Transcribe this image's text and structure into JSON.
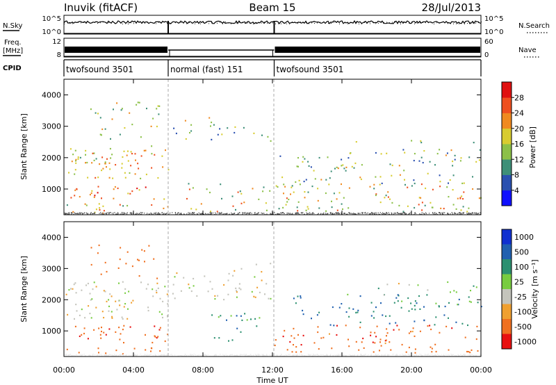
{
  "header": {
    "station": "Inuvik (fitACF)",
    "beam": "Beam 15",
    "date": "28/Jul/2013"
  },
  "panels": {
    "nsky": {
      "label": "N.Sky",
      "ticks": [
        "10^5",
        "10^0"
      ],
      "right_label": "N.Search",
      "right_ticks": [
        "10^5",
        "10^0"
      ]
    },
    "freq": {
      "label_line1": "Freq.",
      "label_line2": "[MHz]",
      "ticks": [
        "12",
        "8"
      ],
      "right_label": "Nave",
      "right_ticks": [
        "60",
        "0"
      ]
    },
    "cpid": {
      "label": "CPID",
      "segments": [
        {
          "name": "twofsound 3501",
          "start_h": 0,
          "end_h": 6.0
        },
        {
          "name": "normal (fast) 151",
          "start_h": 6.0,
          "end_h": 12.1
        },
        {
          "name": "twofsound 3501",
          "start_h": 12.1,
          "end_h": 24
        }
      ]
    }
  },
  "xaxis": {
    "label": "Time UT",
    "ticks": [
      {
        "h": 0,
        "label": "00:00"
      },
      {
        "h": 4,
        "label": "04:00"
      },
      {
        "h": 8,
        "label": "08:00"
      },
      {
        "h": 12,
        "label": "12:00"
      },
      {
        "h": 16,
        "label": "16:00"
      },
      {
        "h": 20,
        "label": "20:00"
      },
      {
        "h": 24,
        "label": "00:00"
      }
    ]
  },
  "yaxis": {
    "label": "Slant Range [km]",
    "ticks": [
      {
        "v": 1000,
        "label": "1000"
      },
      {
        "v": 2000,
        "label": "2000"
      },
      {
        "v": 3000,
        "label": "3000"
      },
      {
        "v": 4000,
        "label": "4000"
      }
    ]
  },
  "colorbars": {
    "power": {
      "label": "Power [dB]",
      "colors": [
        "#1010ff",
        "#2a50b0",
        "#3e8f78",
        "#8cc048",
        "#d8cc30",
        "#f08a20",
        "#ef5020",
        "#e01010"
      ],
      "ticks": [
        "4",
        "8",
        "12",
        "16",
        "20",
        "24",
        "28"
      ]
    },
    "velocity": {
      "label": "Velocity [m s⁻¹]",
      "colors": [
        "#1030d0",
        "#2060b0",
        "#2c9070",
        "#78cc40",
        "#c4c4bc",
        "#f0a030",
        "#f07020",
        "#e81010"
      ],
      "ticks": [
        "1000",
        "500",
        "100",
        "25",
        "-25",
        "-100",
        "-500",
        "-1000"
      ]
    }
  },
  "chart_data": {
    "type": "heatmap",
    "title": "Inuvik (fitACF)",
    "x_unit": "hours UT",
    "xlim": [
      0,
      24
    ],
    "ylim": [
      180,
      4500
    ],
    "xlabel": "Time UT",
    "ylabel": "Slant Range [km]",
    "grid": false,
    "panels": [
      {
        "quantity": "Power",
        "unit": "dB",
        "scale": [
          0,
          30
        ],
        "scatter_regions": [
          {
            "t": [
              0.1,
              6.0
            ],
            "r": [
              1350,
              2400
            ],
            "v": [
              10,
              26
            ],
            "density": 0.85
          },
          {
            "t": [
              0.3,
              6.0
            ],
            "r": [
              700,
              1100
            ],
            "v": [
              14,
              28
            ],
            "density": 0.8
          },
          {
            "t": [
              0.0,
              6.0
            ],
            "r": [
              250,
              550
            ],
            "v": [
              8,
              28
            ],
            "density": 0.7
          },
          {
            "t": [
              1.5,
              5.5
            ],
            "r": [
              2600,
              3800
            ],
            "v": [
              8,
              22
            ],
            "density": 0.45
          },
          {
            "t": [
              6.2,
              12.0
            ],
            "r": [
              2500,
              3300
            ],
            "v": [
              6,
              20
            ],
            "density": 0.35
          },
          {
            "t": [
              7.0,
              12.0
            ],
            "r": [
              300,
              1200
            ],
            "v": [
              8,
              24
            ],
            "density": 0.45
          },
          {
            "t": [
              12.1,
              24.0
            ],
            "r": [
              300,
              1200
            ],
            "v": [
              8,
              26
            ],
            "density": 0.65
          },
          {
            "t": [
              12.1,
              24.0
            ],
            "r": [
              1200,
              2200
            ],
            "v": [
              4,
              20
            ],
            "density": 0.45
          },
          {
            "t": [
              16.0,
              24.0
            ],
            "r": [
              2000,
              2600
            ],
            "v": [
              6,
              20
            ],
            "density": 0.3
          }
        ]
      },
      {
        "quantity": "Velocity",
        "unit": "m s⁻¹",
        "scale": [
          -1000,
          1000
        ],
        "scatter_regions": [
          {
            "t": [
              0.1,
              6.0
            ],
            "r": [
              1400,
              2600
            ],
            "v": [
              -50,
              50
            ],
            "density": 0.8
          },
          {
            "t": [
              0.3,
              6.0
            ],
            "r": [
              600,
              1200
            ],
            "v": [
              -600,
              -100
            ],
            "density": 0.7
          },
          {
            "t": [
              0.0,
              6.0
            ],
            "r": [
              250,
              500
            ],
            "v": [
              -500,
              -100
            ],
            "density": 0.6
          },
          {
            "t": [
              1.5,
              5.5
            ],
            "r": [
              2700,
              3800
            ],
            "v": [
              -400,
              -80
            ],
            "density": 0.35
          },
          {
            "t": [
              6.2,
              12.0
            ],
            "r": [
              2000,
              3200
            ],
            "v": [
              -40,
              40
            ],
            "density": 0.5
          },
          {
            "t": [
              8.0,
              11.5
            ],
            "r": [
              700,
              1600
            ],
            "v": [
              50,
              800
            ],
            "density": 0.45
          },
          {
            "t": [
              12.1,
              24.0
            ],
            "r": [
              300,
              1200
            ],
            "v": [
              -600,
              -50
            ],
            "density": 0.6
          },
          {
            "t": [
              13.0,
              24.0
            ],
            "r": [
              1200,
              2200
            ],
            "v": [
              50,
              1000
            ],
            "density": 0.45
          },
          {
            "t": [
              18.0,
              24.0
            ],
            "r": [
              1800,
              2600
            ],
            "v": [
              -40,
              150
            ],
            "density": 0.35
          }
        ]
      }
    ]
  }
}
